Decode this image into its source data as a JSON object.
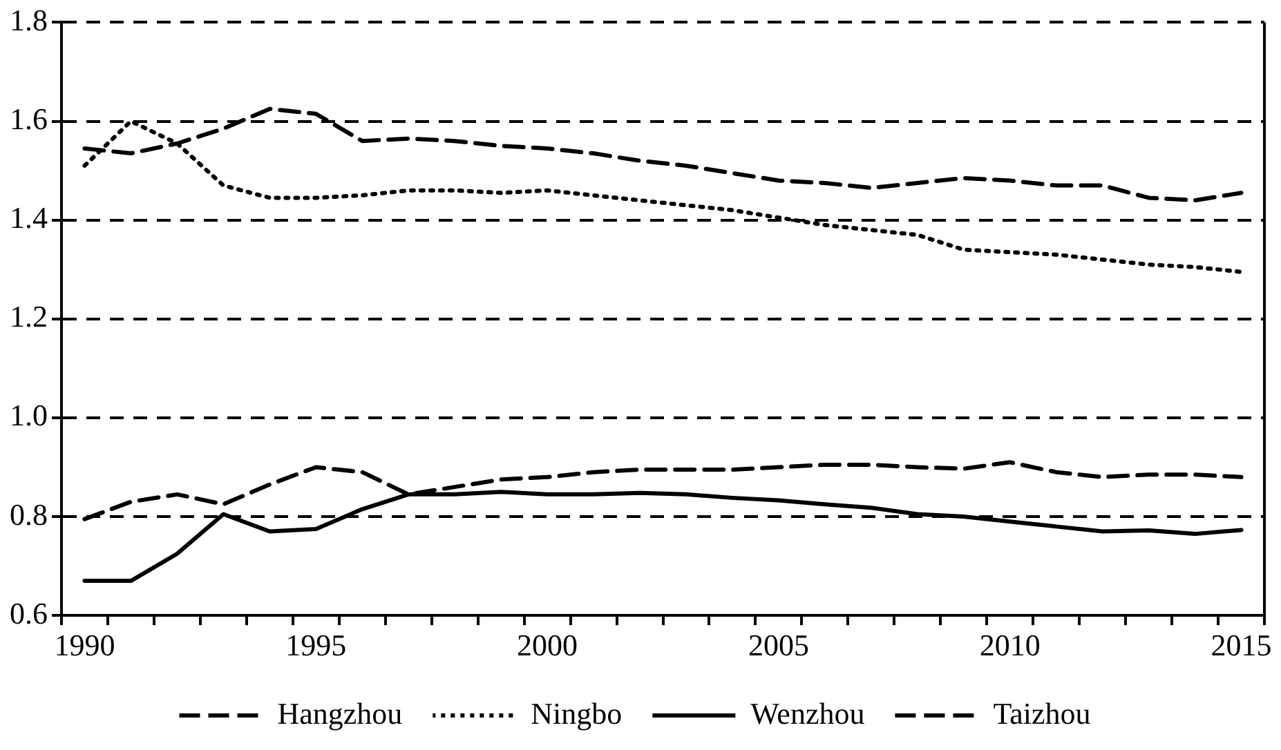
{
  "chart_data": {
    "type": "line",
    "categories": [
      "1990",
      null,
      null,
      null,
      null,
      "1995",
      null,
      null,
      null,
      null,
      "2000",
      null,
      null,
      null,
      null,
      "2005",
      null,
      null,
      null,
      null,
      "2010",
      null,
      null,
      null,
      null,
      "2015"
    ],
    "series": [
      {
        "name": "Hangzhou",
        "color": "#000000",
        "line_style": "dashed",
        "values": [
          1.545,
          1.535,
          1.555,
          1.585,
          1.625,
          1.615,
          1.56,
          1.565,
          1.56,
          1.55,
          1.545,
          1.535,
          1.52,
          1.51,
          1.495,
          1.48,
          1.475,
          1.465,
          1.475,
          1.485,
          1.48,
          1.47,
          1.47,
          1.445,
          1.44,
          1.455
        ]
      },
      {
        "name": "Ningbo",
        "color": "#000000",
        "line_style": "dotted",
        "values": [
          1.51,
          1.6,
          1.555,
          1.47,
          1.445,
          1.445,
          1.45,
          1.46,
          1.46,
          1.455,
          1.46,
          1.45,
          1.44,
          1.43,
          1.42,
          1.405,
          1.39,
          1.38,
          1.37,
          1.34,
          1.335,
          1.33,
          1.32,
          1.31,
          1.305,
          1.295
        ]
      },
      {
        "name": "Wenzhou",
        "color": "#000000",
        "line_style": "solid",
        "values": [
          0.67,
          0.67,
          0.725,
          0.805,
          0.77,
          0.775,
          0.815,
          0.845,
          0.845,
          0.85,
          0.845,
          0.845,
          0.848,
          0.845,
          0.838,
          0.833,
          0.825,
          0.818,
          0.805,
          0.8,
          0.79,
          0.78,
          0.77,
          0.772,
          0.765,
          0.773
        ]
      },
      {
        "name": "Taizhou",
        "color": "#000000",
        "line_style": "dashed",
        "values": [
          0.795,
          0.83,
          0.845,
          0.825,
          0.865,
          0.9,
          0.89,
          0.845,
          0.86,
          0.875,
          0.88,
          0.89,
          0.895,
          0.895,
          0.895,
          0.9,
          0.905,
          0.905,
          0.9,
          0.897,
          0.91,
          0.89,
          0.88,
          0.885,
          0.885,
          0.88
        ]
      }
    ],
    "ylim": [
      0.6,
      1.8
    ],
    "yticks": [
      0.6,
      0.8,
      {
        "value": 1,
        "label": "1.0"
      },
      1.2,
      1.4,
      1.6,
      1.8
    ],
    "grid": "y",
    "legend": "bottom",
    "marker": "none"
  }
}
